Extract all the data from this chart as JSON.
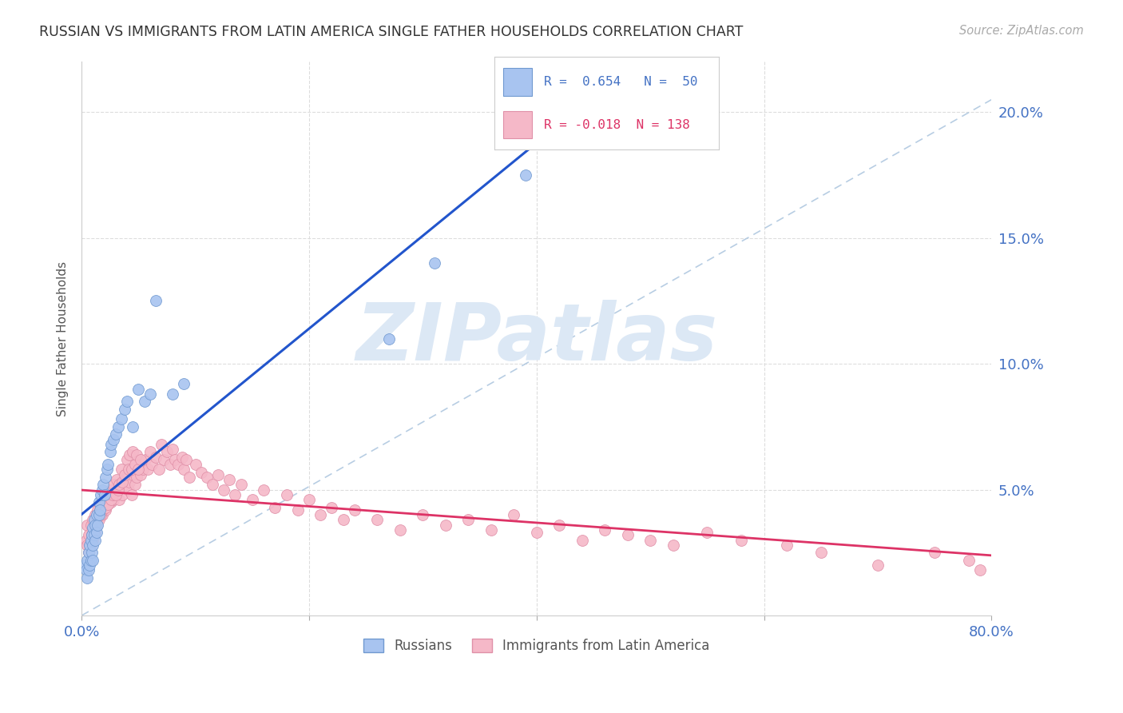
{
  "title": "RUSSIAN VS IMMIGRANTS FROM LATIN AMERICA SINGLE FATHER HOUSEHOLDS CORRELATION CHART",
  "source": "Source: ZipAtlas.com",
  "ylabel": "Single Father Households",
  "xlim": [
    0.0,
    0.8
  ],
  "ylim": [
    0.0,
    0.22
  ],
  "right_yticklabels": [
    "",
    "5.0%",
    "10.0%",
    "15.0%",
    "20.0%"
  ],
  "right_ytickvals": [
    0.0,
    0.05,
    0.1,
    0.15,
    0.2
  ],
  "legend_blue_r": "R =  0.654",
  "legend_blue_n": "N =  50",
  "legend_pink_r": "R = -0.018",
  "legend_pink_n": "N = 138",
  "blue_color": "#a8c4f0",
  "blue_edge_color": "#7099d0",
  "pink_color": "#f5b8c8",
  "pink_edge_color": "#e090a8",
  "blue_line_color": "#2255cc",
  "pink_line_color": "#dd3366",
  "dashed_line_color": "#b0c8e0",
  "watermark_text": "ZIPatlas",
  "watermark_color": "#dce8f5",
  "grid_color": "#dddddd",
  "blue_scatter_x": [
    0.003,
    0.004,
    0.005,
    0.005,
    0.006,
    0.006,
    0.007,
    0.007,
    0.008,
    0.008,
    0.009,
    0.009,
    0.01,
    0.01,
    0.01,
    0.011,
    0.011,
    0.012,
    0.012,
    0.013,
    0.013,
    0.014,
    0.015,
    0.015,
    0.016,
    0.017,
    0.018,
    0.019,
    0.02,
    0.021,
    0.022,
    0.023,
    0.025,
    0.026,
    0.028,
    0.03,
    0.032,
    0.035,
    0.038,
    0.04,
    0.045,
    0.05,
    0.055,
    0.06,
    0.065,
    0.08,
    0.09,
    0.27,
    0.31,
    0.39
  ],
  "blue_scatter_y": [
    0.02,
    0.018,
    0.015,
    0.022,
    0.018,
    0.025,
    0.02,
    0.028,
    0.022,
    0.03,
    0.025,
    0.032,
    0.028,
    0.035,
    0.022,
    0.032,
    0.038,
    0.03,
    0.036,
    0.033,
    0.04,
    0.036,
    0.04,
    0.045,
    0.042,
    0.048,
    0.05,
    0.052,
    0.048,
    0.055,
    0.058,
    0.06,
    0.065,
    0.068,
    0.07,
    0.072,
    0.075,
    0.078,
    0.082,
    0.085,
    0.075,
    0.09,
    0.085,
    0.088,
    0.125,
    0.088,
    0.092,
    0.11,
    0.14,
    0.175
  ],
  "pink_scatter_x": [
    0.004,
    0.005,
    0.006,
    0.007,
    0.008,
    0.009,
    0.01,
    0.01,
    0.011,
    0.012,
    0.012,
    0.013,
    0.014,
    0.015,
    0.016,
    0.017,
    0.018,
    0.02,
    0.021,
    0.022,
    0.023,
    0.025,
    0.026,
    0.027,
    0.028,
    0.03,
    0.031,
    0.032,
    0.033,
    0.035,
    0.036,
    0.038,
    0.04,
    0.041,
    0.042,
    0.044,
    0.045,
    0.047,
    0.048,
    0.05,
    0.052,
    0.054,
    0.056,
    0.058,
    0.06,
    0.062,
    0.065,
    0.068,
    0.07,
    0.072,
    0.075,
    0.078,
    0.08,
    0.082,
    0.085,
    0.088,
    0.09,
    0.092,
    0.095,
    0.1,
    0.105,
    0.11,
    0.115,
    0.12,
    0.125,
    0.13,
    0.135,
    0.14,
    0.15,
    0.16,
    0.17,
    0.18,
    0.19,
    0.2,
    0.21,
    0.22,
    0.23,
    0.24,
    0.26,
    0.28,
    0.3,
    0.32,
    0.34,
    0.36,
    0.38,
    0.4,
    0.42,
    0.44,
    0.46,
    0.48,
    0.5,
    0.52,
    0.55,
    0.58,
    0.62,
    0.65,
    0.7,
    0.75,
    0.78,
    0.79,
    0.005,
    0.006,
    0.007,
    0.008,
    0.009,
    0.01,
    0.011,
    0.012,
    0.013,
    0.014,
    0.015,
    0.016,
    0.017,
    0.018,
    0.02,
    0.021,
    0.022,
    0.023,
    0.025,
    0.026,
    0.027,
    0.028,
    0.03,
    0.031,
    0.032,
    0.033,
    0.035,
    0.036,
    0.038,
    0.04,
    0.041,
    0.042,
    0.044,
    0.045,
    0.047,
    0.048,
    0.05,
    0.052
  ],
  "pink_scatter_y": [
    0.03,
    0.028,
    0.025,
    0.032,
    0.028,
    0.033,
    0.035,
    0.03,
    0.038,
    0.033,
    0.036,
    0.04,
    0.038,
    0.042,
    0.04,
    0.044,
    0.04,
    0.045,
    0.042,
    0.046,
    0.044,
    0.048,
    0.045,
    0.05,
    0.046,
    0.05,
    0.048,
    0.052,
    0.046,
    0.053,
    0.048,
    0.052,
    0.055,
    0.05,
    0.053,
    0.048,
    0.056,
    0.052,
    0.055,
    0.06,
    0.056,
    0.058,
    0.062,
    0.058,
    0.065,
    0.06,
    0.063,
    0.058,
    0.068,
    0.062,
    0.065,
    0.06,
    0.066,
    0.062,
    0.06,
    0.063,
    0.058,
    0.062,
    0.055,
    0.06,
    0.057,
    0.055,
    0.052,
    0.056,
    0.05,
    0.054,
    0.048,
    0.052,
    0.046,
    0.05,
    0.043,
    0.048,
    0.042,
    0.046,
    0.04,
    0.043,
    0.038,
    0.042,
    0.038,
    0.034,
    0.04,
    0.036,
    0.038,
    0.034,
    0.04,
    0.033,
    0.036,
    0.03,
    0.034,
    0.032,
    0.03,
    0.028,
    0.033,
    0.03,
    0.028,
    0.025,
    0.02,
    0.025,
    0.022,
    0.018,
    0.036,
    0.032,
    0.028,
    0.036,
    0.032,
    0.038,
    0.034,
    0.04,
    0.036,
    0.042,
    0.038,
    0.044,
    0.04,
    0.042,
    0.046,
    0.043,
    0.048,
    0.044,
    0.05,
    0.046,
    0.048,
    0.052,
    0.048,
    0.054,
    0.05,
    0.052,
    0.058,
    0.053,
    0.056,
    0.062,
    0.058,
    0.064,
    0.058,
    0.065,
    0.06,
    0.064,
    0.058,
    0.062
  ]
}
